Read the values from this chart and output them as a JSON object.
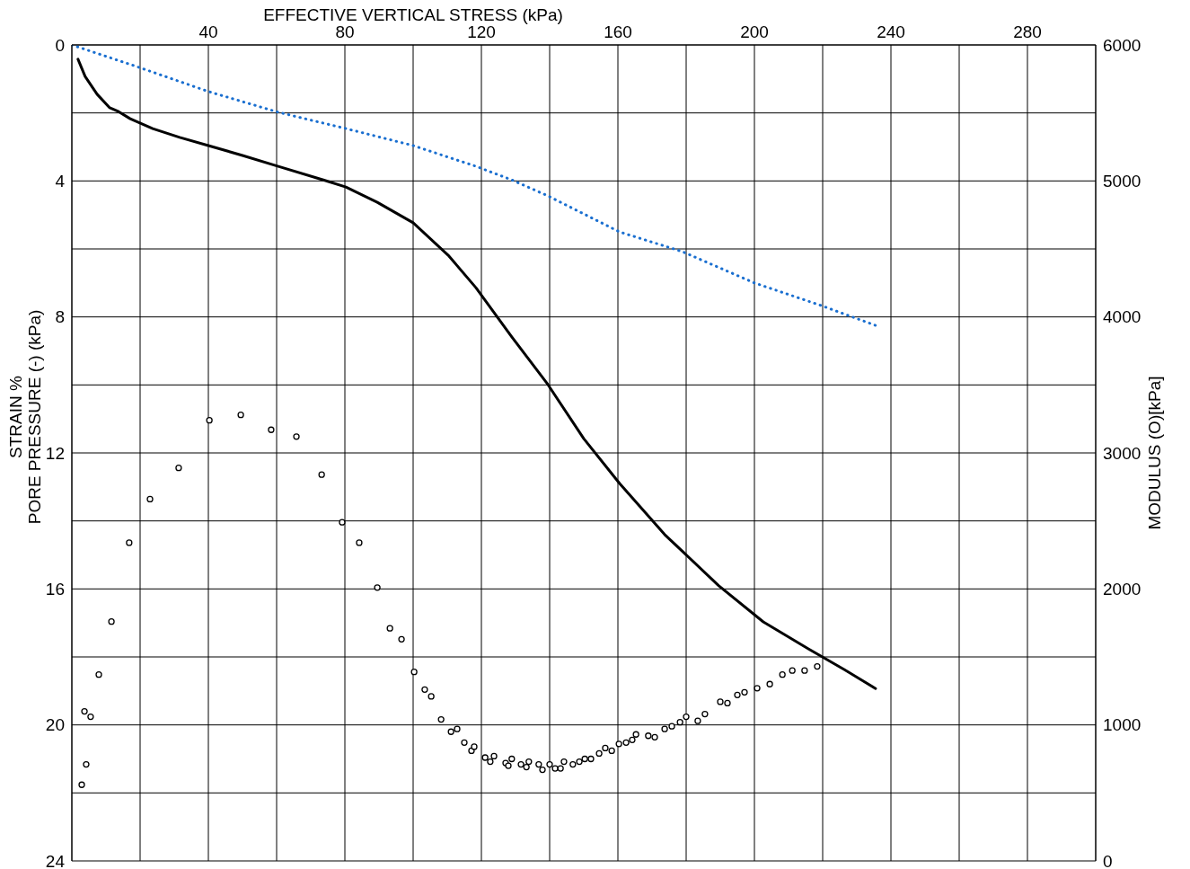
{
  "chart_data": {
    "type": "line",
    "xlabel": "EFFECTIVE VERTICAL STRESS (kPa)",
    "ylabel": "STRAIN %\nPORE PRESSURE (-) (kPa)",
    "y2label": "MODULUS (O)[kPa]",
    "xlim": [
      0,
      300
    ],
    "xticks": [
      {
        "value": 0,
        "label": null
      },
      {
        "value": 20,
        "label": null
      },
      40,
      {
        "value": 60,
        "label": null
      },
      80,
      {
        "value": 100,
        "label": null
      },
      120,
      {
        "value": 140,
        "label": null
      },
      160,
      {
        "value": 180,
        "label": null
      },
      200,
      {
        "value": 220,
        "label": null
      },
      240,
      {
        "value": 260,
        "label": null
      },
      280
    ],
    "ylim": [
      24,
      0
    ],
    "yticks": [
      0,
      {
        "value": 2,
        "label": null
      },
      4,
      {
        "value": 6,
        "label": null
      },
      8,
      {
        "value": 10,
        "label": null
      },
      12,
      {
        "value": 14,
        "label": null
      },
      16,
      {
        "value": 18,
        "label": null
      },
      20,
      {
        "value": 22,
        "label": null
      },
      24
    ],
    "y2lim": [
      0,
      6000
    ],
    "y2ticks": [
      0,
      1000,
      2000,
      3000,
      4000,
      5000,
      6000
    ],
    "grid": true,
    "series": [
      {
        "color": "#000000",
        "line_style": "solid",
        "marker": "none",
        "x": [
          1.8,
          3.9,
          7.4,
          11.1,
          13.7,
          17.1,
          23.7,
          31.6,
          40,
          50,
          60.5,
          73.7,
          80.3,
          89.5,
          100,
          110.5,
          118.4,
          128.9,
          139.5,
          150,
          160.5,
          173.7,
          189.5,
          202.6,
          215.8,
          226.3,
          235.5
        ],
        "values": [
          0.42,
          0.93,
          1.45,
          1.85,
          1.96,
          2.17,
          2.46,
          2.72,
          2.96,
          3.25,
          3.57,
          3.97,
          4.18,
          4.63,
          5.23,
          6.21,
          7.14,
          8.59,
          9.99,
          11.58,
          12.9,
          14.4,
          15.9,
          16.97,
          17.76,
          18.37,
          18.93
        ]
      },
      {
        "type": "line",
        "color": "#1a6fd0",
        "line_style": "dotted",
        "marker": "none",
        "x": [
          0,
          19.7,
          40,
          60.5,
          80.3,
          100,
          118.4,
          128.9,
          139.5,
          160.5,
          178.9,
          200,
          219.7,
          235.5
        ],
        "values": [
          0,
          0.66,
          1.37,
          1.98,
          2.46,
          2.96,
          3.57,
          3.97,
          4.44,
          5.5,
          6.08,
          7.0,
          7.67,
          8.25
        ]
      },
      {
        "type": "scatter",
        "axis": "y2",
        "color": "#000000",
        "marker": "circle",
        "x": [
          2.9,
          4.2,
          3.7,
          5.5,
          7.9,
          11.6,
          16.8,
          22.9,
          31.3,
          40.3,
          49.5,
          58.4,
          65.8,
          73.2,
          79.2,
          84.2,
          89.5,
          93.2,
          96.6,
          100.3,
          103.4,
          105.3,
          108.2,
          111.1,
          112.9,
          115,
          117.1,
          117.9,
          121.1,
          122.6,
          123.7,
          127.1,
          127.9,
          128.9,
          131.6,
          133.2,
          133.9,
          136.8,
          137.9,
          140,
          141.6,
          143.2,
          144.2,
          146.8,
          148.7,
          150.3,
          152.1,
          154.5,
          156.3,
          158.2,
          160.3,
          162.4,
          164.2,
          165.3,
          168.9,
          170.8,
          173.7,
          175.8,
          178.2,
          180,
          183.4,
          185.5,
          190,
          192.1,
          195,
          197.1,
          200.8,
          204.5,
          208.2,
          211.1,
          214.7,
          218.4
        ],
        "values": [
          560,
          710,
          1100,
          1060,
          1370,
          1760,
          2340,
          2660,
          2890,
          3240,
          3280,
          3170,
          3120,
          2840,
          2490,
          2340,
          2010,
          1710,
          1630,
          1390,
          1260,
          1210,
          1040,
          950,
          970,
          870,
          810,
          840,
          760,
          730,
          770,
          720,
          700,
          750,
          710,
          690,
          730,
          710,
          670,
          710,
          680,
          680,
          730,
          710,
          730,
          750,
          750,
          790,
          830,
          810,
          860,
          870,
          890,
          930,
          920,
          910,
          970,
          990,
          1020,
          1060,
          1030,
          1080,
          1170,
          1160,
          1220,
          1240,
          1270,
          1300,
          1370,
          1400,
          1400,
          1430
        ]
      }
    ]
  }
}
